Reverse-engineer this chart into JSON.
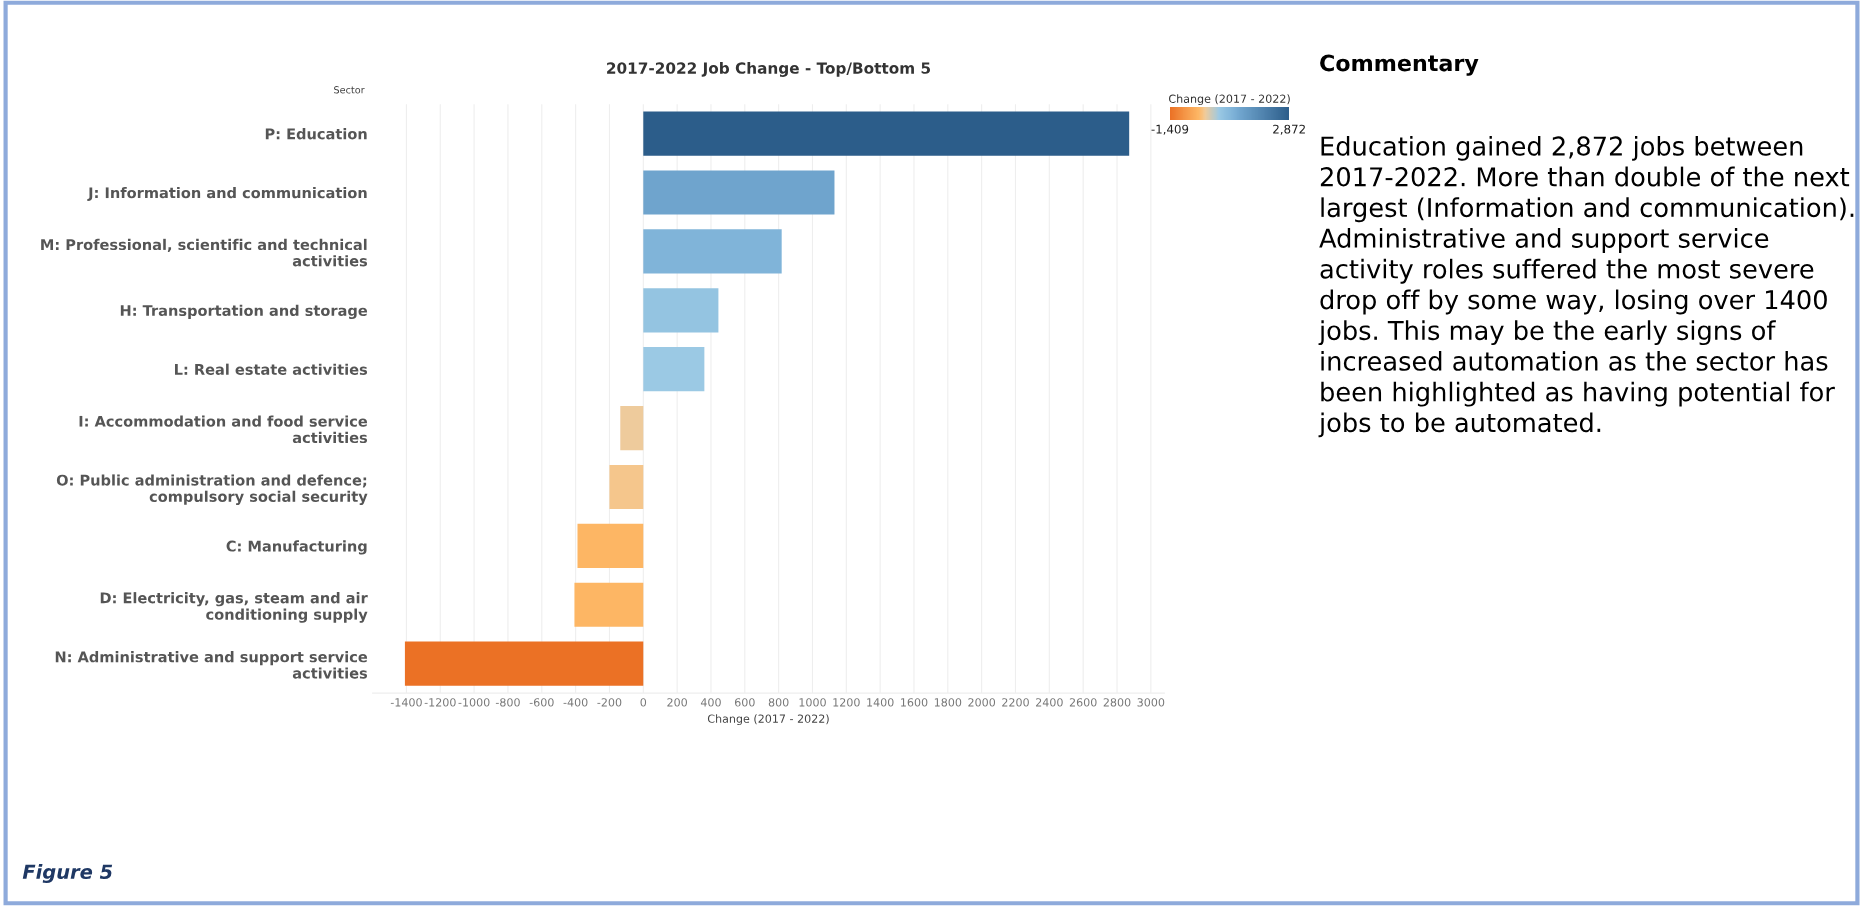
{
  "chart_data": {
    "type": "bar",
    "orientation": "horizontal",
    "title": "2017-2022 Job Change - Top/Bottom 5",
    "ylabel": "Sector",
    "xlabel": "Change (2017 - 2022)",
    "categories": [
      "P: Education",
      "J: Information and communication",
      "M: Professional, scientific and technical\nactivities",
      "H: Transportation and storage",
      "L: Real estate activities",
      "I: Accommodation and food service\nactivities",
      "O: Public administration and defence;\ncompulsory social security",
      "C: Manufacturing",
      "D: Electricity, gas, steam and air\nconditioning supply",
      "N: Administrative and support service\nactivities"
    ],
    "values": [
      2872,
      1130,
      818,
      444,
      361,
      -136,
      -200,
      -389,
      -407,
      -1409
    ],
    "colors": [
      "#2c5d8a",
      "#6fa4cd",
      "#80b4d9",
      "#94c4e1",
      "#9bc9e4",
      "#eecb9c",
      "#f5c68c",
      "#fdb664",
      "#fdb664",
      "#eb7125"
    ],
    "xlim": [
      -1600,
      3080
    ],
    "xticks": [
      -1400,
      -1200,
      -1000,
      -800,
      -600,
      -400,
      -200,
      0,
      200,
      400,
      600,
      800,
      1000,
      1200,
      1400,
      1600,
      1800,
      2000,
      2200,
      2400,
      2600,
      2800,
      3000
    ],
    "grid": "x",
    "legend": false,
    "clabel": "Change (2017 - 2022)",
    "clim": [
      -1409,
      2872
    ],
    "cticks": [
      {
        "value": -1409,
        "label": "-1,409"
      },
      {
        "value": 2872,
        "label": "2,872"
      }
    ],
    "annotations": [
      "Commentary",
      "Education gained 2,872 jobs between 2017-2022. More than double of the next largest (Information and communication).\nAdministrative and support service activity roles suffered the most severe drop off by some way, losing over 1400 jobs. This may be the early signs of increased automation as the sector has been highlighted as having potential for jobs to be automated.",
      "Figure 5"
    ]
  }
}
